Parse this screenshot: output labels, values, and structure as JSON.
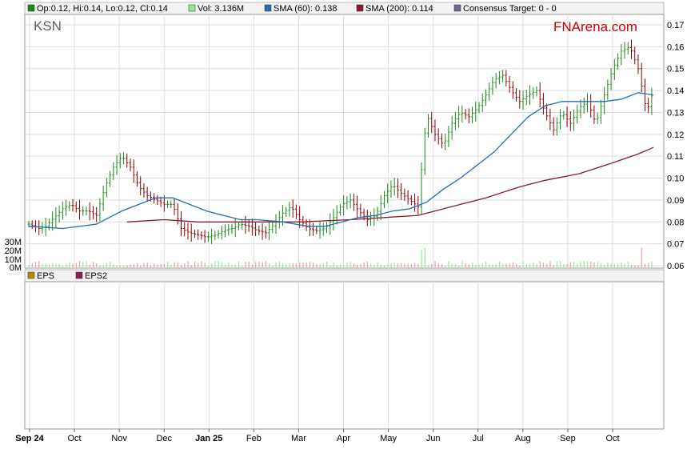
{
  "legend": {
    "ohlc": "Op:0.12, Hi:0.14, Lo:0.12, Cl:0.14",
    "vol": "Vol: 3.136M",
    "sma60": "SMA (60): 0.138",
    "sma200": "SMA (200): 0.114",
    "consensus": "Consensus Target: 0 - 0"
  },
  "ticker": "KSN",
  "brand": "FNArena.com",
  "eps_legend": {
    "eps": "EPS",
    "eps2": "EPS2"
  },
  "colors": {
    "up": "#1a8a1a",
    "down": "#8b0000",
    "sma60": "#1f6fb5",
    "sma200": "#8b1a2b",
    "brand": "#cc0000",
    "ticker": "#606060",
    "grid": "#dddddd",
    "vol_up": "#9be89b",
    "vol_down": "#e8a0a0",
    "eps": "#b58a00",
    "eps2": "#8b2252",
    "consensus": "#6a6a8a"
  },
  "chart_data": {
    "type": "line",
    "title": "KSN",
    "ylim": [
      0.06,
      0.17
    ],
    "price_ticks": [
      "0.17",
      "0.16",
      "0.15",
      "0.14",
      "0.13",
      "0.12",
      "0.11",
      "0.10",
      "0.09",
      "0.08",
      "0.07",
      "0.06"
    ],
    "volume_ticks": [
      "30M",
      "20M",
      "10M",
      "0M"
    ],
    "x_labels": [
      "Sep 24",
      "Oct",
      "Nov",
      "Dec",
      "Jan 25",
      "Feb",
      "Mar",
      "Apr",
      "May",
      "Jun",
      "Jul",
      "Aug",
      "Sep",
      "Oct"
    ],
    "x_label_bold": [
      true,
      false,
      false,
      false,
      true,
      false,
      false,
      false,
      false,
      false,
      false,
      false,
      false,
      false
    ],
    "price_close": [
      [
        0,
        0.079
      ],
      [
        6,
        0.077
      ],
      [
        10,
        0.078
      ],
      [
        15,
        0.082
      ],
      [
        20,
        0.086
      ],
      [
        25,
        0.088
      ],
      [
        30,
        0.085
      ],
      [
        35,
        0.085
      ],
      [
        40,
        0.083
      ],
      [
        45,
        0.096
      ],
      [
        50,
        0.105
      ],
      [
        55,
        0.11
      ],
      [
        60,
        0.105
      ],
      [
        65,
        0.096
      ],
      [
        70,
        0.092
      ],
      [
        75,
        0.09
      ],
      [
        80,
        0.088
      ],
      [
        85,
        0.088
      ],
      [
        90,
        0.077
      ],
      [
        95,
        0.075
      ],
      [
        100,
        0.074
      ],
      [
        105,
        0.073
      ],
      [
        110,
        0.074
      ],
      [
        115,
        0.076
      ],
      [
        120,
        0.077
      ],
      [
        125,
        0.079
      ],
      [
        130,
        0.078
      ],
      [
        135,
        0.076
      ],
      [
        140,
        0.075
      ],
      [
        145,
        0.079
      ],
      [
        150,
        0.084
      ],
      [
        155,
        0.087
      ],
      [
        160,
        0.081
      ],
      [
        165,
        0.077
      ],
      [
        170,
        0.076
      ],
      [
        175,
        0.077
      ],
      [
        180,
        0.082
      ],
      [
        185,
        0.088
      ],
      [
        190,
        0.09
      ],
      [
        195,
        0.085
      ],
      [
        200,
        0.081
      ],
      [
        205,
        0.083
      ],
      [
        210,
        0.092
      ],
      [
        215,
        0.097
      ],
      [
        220,
        0.093
      ],
      [
        225,
        0.09
      ],
      [
        230,
        0.087
      ],
      [
        235,
        0.129
      ],
      [
        240,
        0.12
      ],
      [
        245,
        0.115
      ],
      [
        250,
        0.125
      ],
      [
        255,
        0.13
      ],
      [
        260,
        0.128
      ],
      [
        265,
        0.132
      ],
      [
        270,
        0.138
      ],
      [
        275,
        0.145
      ],
      [
        280,
        0.147
      ],
      [
        285,
        0.14
      ],
      [
        290,
        0.135
      ],
      [
        295,
        0.138
      ],
      [
        300,
        0.14
      ],
      [
        305,
        0.13
      ],
      [
        310,
        0.122
      ],
      [
        315,
        0.13
      ],
      [
        320,
        0.125
      ],
      [
        325,
        0.132
      ],
      [
        330,
        0.135
      ],
      [
        335,
        0.125
      ],
      [
        340,
        0.138
      ],
      [
        345,
        0.15
      ],
      [
        350,
        0.158
      ],
      [
        355,
        0.16
      ],
      [
        360,
        0.15
      ],
      [
        365,
        0.13
      ],
      [
        369,
        0.14
      ]
    ],
    "series": [
      {
        "name": "SMA (60)",
        "values": [
          [
            0,
            0.078
          ],
          [
            20,
            0.077
          ],
          [
            40,
            0.079
          ],
          [
            55,
            0.085
          ],
          [
            65,
            0.088
          ],
          [
            75,
            0.091
          ],
          [
            85,
            0.091
          ],
          [
            95,
            0.088
          ],
          [
            105,
            0.085
          ],
          [
            115,
            0.083
          ],
          [
            125,
            0.081
          ],
          [
            135,
            0.081
          ],
          [
            150,
            0.08
          ],
          [
            165,
            0.078
          ],
          [
            175,
            0.078
          ],
          [
            185,
            0.08
          ],
          [
            195,
            0.082
          ],
          [
            205,
            0.083
          ],
          [
            215,
            0.085
          ],
          [
            225,
            0.086
          ],
          [
            235,
            0.089
          ],
          [
            245,
            0.095
          ],
          [
            255,
            0.1
          ],
          [
            265,
            0.106
          ],
          [
            275,
            0.112
          ],
          [
            285,
            0.12
          ],
          [
            295,
            0.128
          ],
          [
            305,
            0.133
          ],
          [
            315,
            0.135
          ],
          [
            330,
            0.135
          ],
          [
            340,
            0.135
          ],
          [
            350,
            0.136
          ],
          [
            360,
            0.139
          ],
          [
            369,
            0.138
          ]
        ]
      },
      {
        "name": "SMA (200)",
        "values": [
          [
            58,
            0.08
          ],
          [
            80,
            0.081
          ],
          [
            100,
            0.08
          ],
          [
            130,
            0.08
          ],
          [
            160,
            0.08
          ],
          [
            190,
            0.081
          ],
          [
            210,
            0.082
          ],
          [
            230,
            0.083
          ],
          [
            250,
            0.087
          ],
          [
            270,
            0.091
          ],
          [
            290,
            0.096
          ],
          [
            305,
            0.099
          ],
          [
            325,
            0.102
          ],
          [
            345,
            0.107
          ],
          [
            360,
            0.111
          ],
          [
            369,
            0.114
          ]
        ]
      }
    ]
  }
}
